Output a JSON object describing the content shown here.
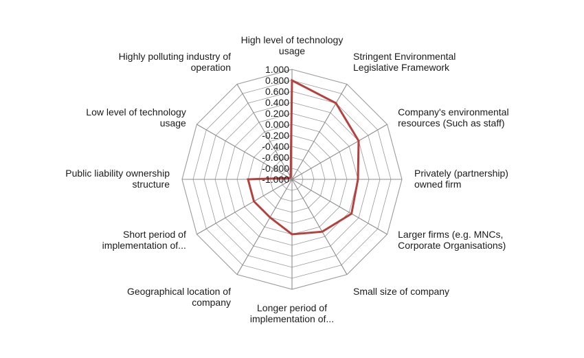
{
  "chart_data": {
    "type": "radar",
    "title": "",
    "categories": [
      "High level of technology usage",
      "Stringent Environmental Legislative Framework",
      "Company's environmental resources (Such as staff)",
      "Privately (partnership) owned firm",
      "Larger firms (e.g. MNCs, Corporate Organisations)",
      "Small size of company",
      "Longer period of implementation of...",
      "Geographical location of company",
      "Short period of implementation of...",
      "Public liability ownership structure",
      "Low level of technology usage",
      "Highly polluting industry of operation"
    ],
    "category_label_lines": [
      [
        "High level of technology",
        "usage"
      ],
      [
        "Stringent Environmental",
        "Legislative Framework"
      ],
      [
        "Company's environmental",
        "resources (Such as staff)"
      ],
      [
        "Privately (partnership)",
        "owned firm"
      ],
      [
        "Larger firms (e.g. MNCs,",
        "Corporate Organisations)"
      ],
      [
        "Small size of company"
      ],
      [
        "Longer period of",
        "implementation of..."
      ],
      [
        "Geographical location of",
        "company"
      ],
      [
        "Short period of",
        "implementation of..."
      ],
      [
        "Public liability ownership",
        "structure"
      ],
      [
        "Low level of technology",
        "usage"
      ],
      [
        "Highly polluting industry of",
        "operation"
      ]
    ],
    "series": [
      {
        "values": [
          0.8,
          0.6,
          0.4,
          0.2,
          0.25,
          0.1,
          0.0,
          -0.2,
          -0.2,
          -0.2,
          -0.95,
          -0.95
        ]
      }
    ],
    "tick_labels": [
      "1.000",
      "0.800",
      "0.600",
      "0.400",
      "0.200",
      "0.000",
      "-0.200",
      "-0.400",
      "-0.600",
      "-0.800",
      "-1.000"
    ],
    "rlim": [
      -1.0,
      1.0
    ],
    "grid": true,
    "legend": "none",
    "colors": {
      "series": "#b5403d",
      "grid": "#9a9a9a",
      "axis": "#8c8c8c",
      "text": "#1a1a1a"
    }
  }
}
